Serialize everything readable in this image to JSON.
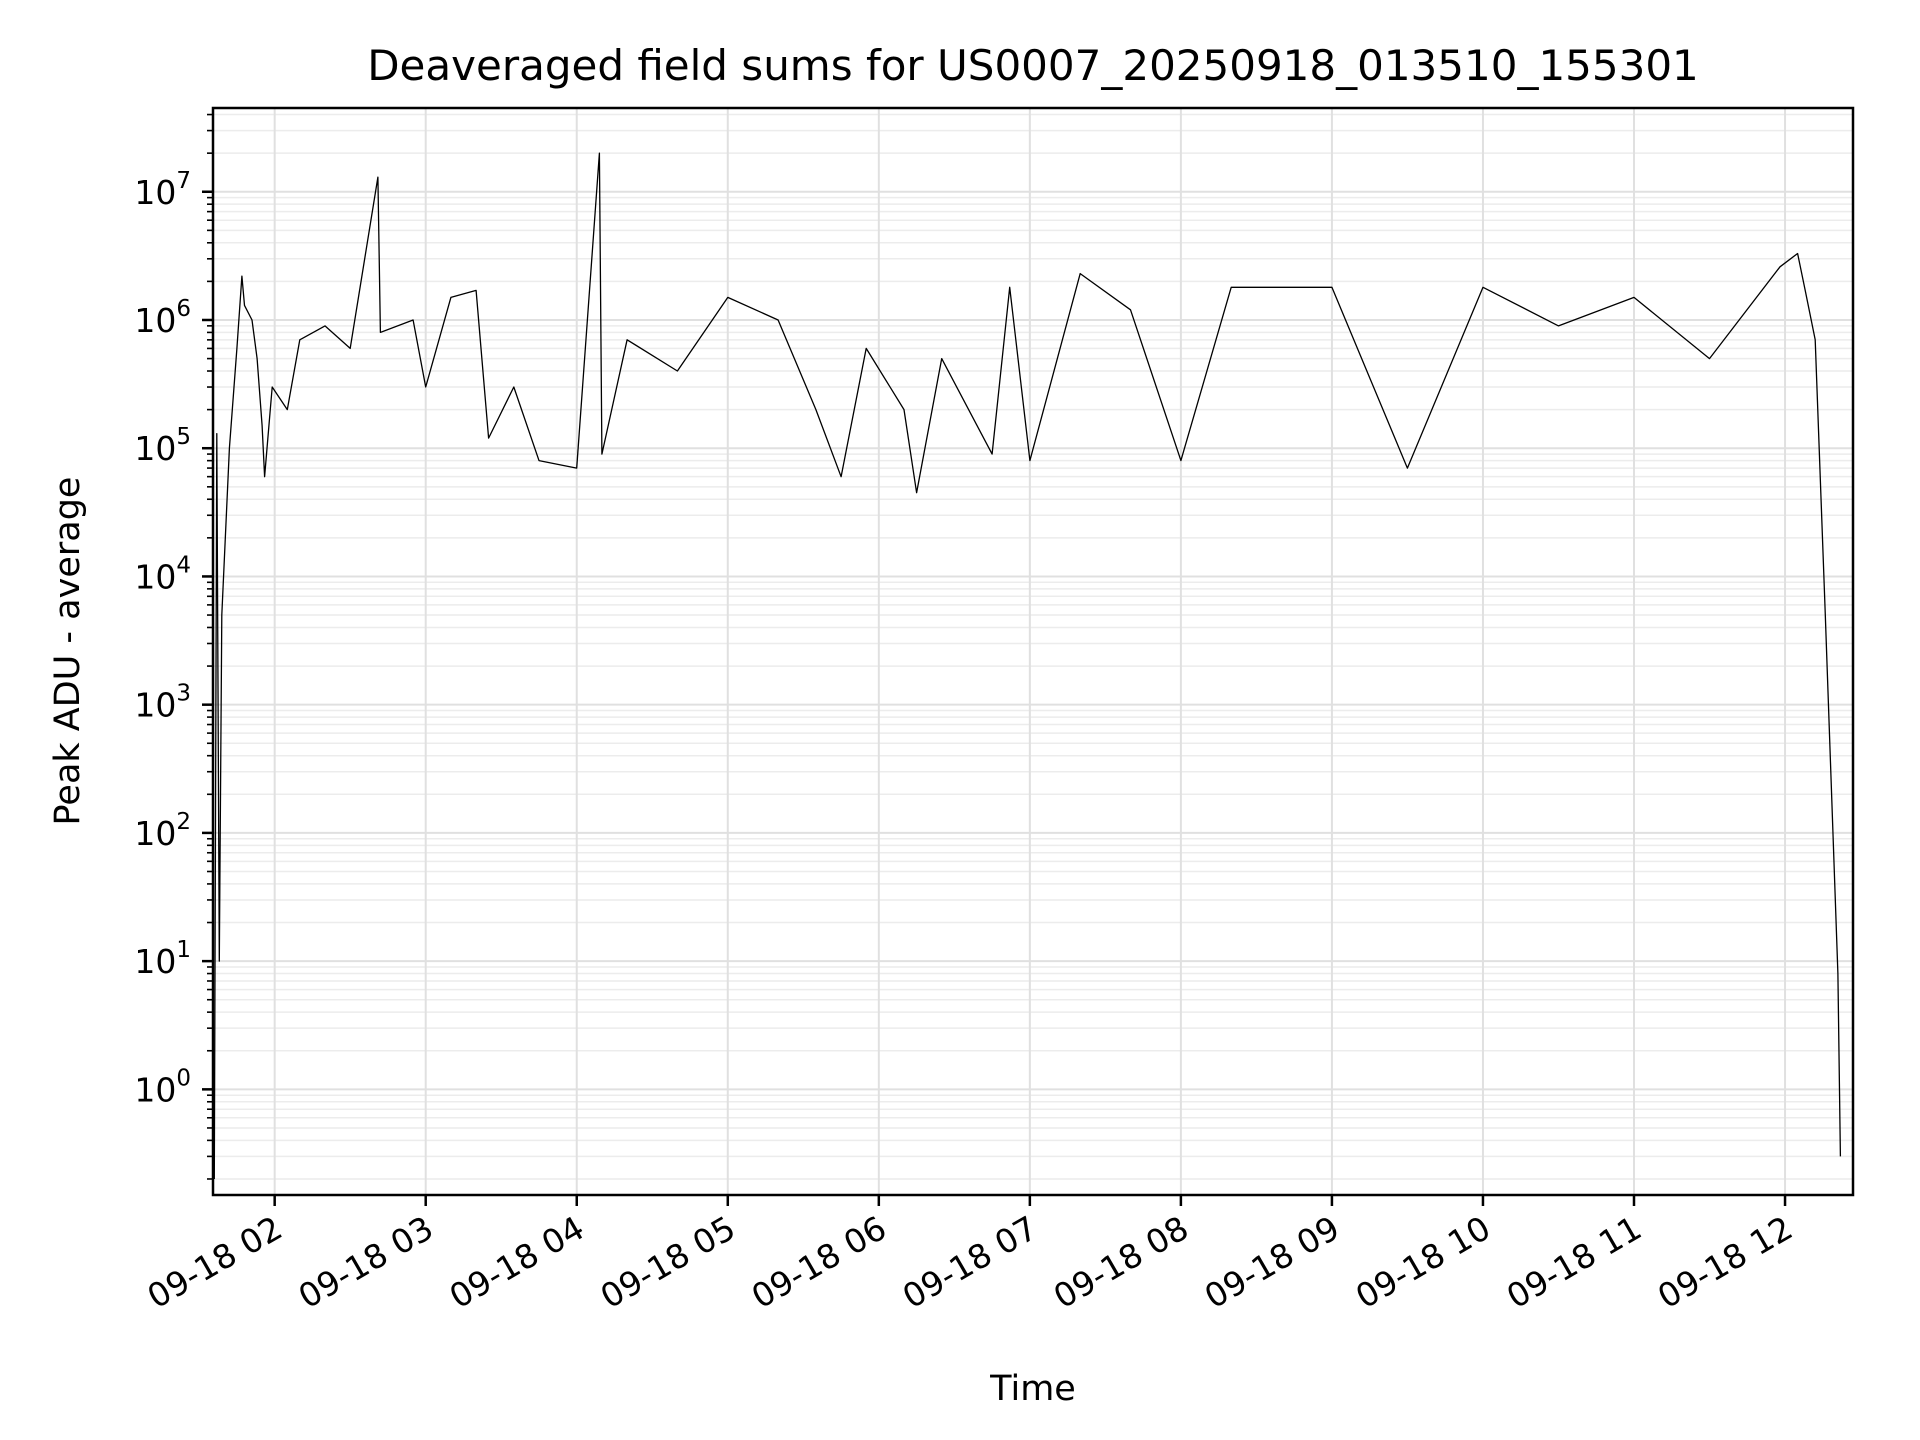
{
  "chart_data": {
    "type": "line",
    "title": "Deaveraged field sums for US0007_20250918_013510_155301",
    "xlabel": "Time",
    "ylabel": "Peak ADU - average",
    "yscale": "log",
    "grid": true,
    "ylim": [
      0.15,
      45000000
    ],
    "xlim": [
      "2025-09-18T01:35:30",
      "2025-09-18T12:27:00"
    ],
    "x_ticks": [
      {
        "t": "2025-09-18T02:00:00",
        "label": "09-18 02"
      },
      {
        "t": "2025-09-18T03:00:00",
        "label": "09-18 03"
      },
      {
        "t": "2025-09-18T04:00:00",
        "label": "09-18 04"
      },
      {
        "t": "2025-09-18T05:00:00",
        "label": "09-18 05"
      },
      {
        "t": "2025-09-18T06:00:00",
        "label": "09-18 06"
      },
      {
        "t": "2025-09-18T07:00:00",
        "label": "09-18 07"
      },
      {
        "t": "2025-09-18T08:00:00",
        "label": "09-18 08"
      },
      {
        "t": "2025-09-18T09:00:00",
        "label": "09-18 09"
      },
      {
        "t": "2025-09-18T10:00:00",
        "label": "09-18 10"
      },
      {
        "t": "2025-09-18T11:00:00",
        "label": "09-18 11"
      },
      {
        "t": "2025-09-18T12:00:00",
        "label": "09-18 12"
      }
    ],
    "y_ticks": [
      {
        "value": 1,
        "base": "10",
        "exp": "0"
      },
      {
        "value": 10,
        "base": "10",
        "exp": "1"
      },
      {
        "value": 100,
        "base": "10",
        "exp": "2"
      },
      {
        "value": 1000,
        "base": "10",
        "exp": "3"
      },
      {
        "value": 10000,
        "base": "10",
        "exp": "4"
      },
      {
        "value": 100000,
        "base": "10",
        "exp": "5"
      },
      {
        "value": 1000000,
        "base": "10",
        "exp": "6"
      },
      {
        "value": 10000000,
        "base": "10",
        "exp": "7"
      }
    ],
    "series": [
      {
        "color": "#000000",
        "points": [
          [
            "2025-09-18T01:36:00",
            0.2
          ],
          [
            "2025-09-18T01:37:00",
            130000
          ],
          [
            "2025-09-18T01:38:00",
            10
          ],
          [
            "2025-09-18T01:39:00",
            5000
          ],
          [
            "2025-09-18T01:42:00",
            100000
          ],
          [
            "2025-09-18T01:45:00",
            600000
          ],
          [
            "2025-09-18T01:47:00",
            2200000
          ],
          [
            "2025-09-18T01:48:00",
            1300000
          ],
          [
            "2025-09-18T01:51:00",
            1000000
          ],
          [
            "2025-09-18T01:53:00",
            500000
          ],
          [
            "2025-09-18T01:55:00",
            150000
          ],
          [
            "2025-09-18T01:56:00",
            60000
          ],
          [
            "2025-09-18T01:59:00",
            300000
          ],
          [
            "2025-09-18T02:05:00",
            200000
          ],
          [
            "2025-09-18T02:10:00",
            700000
          ],
          [
            "2025-09-18T02:20:00",
            900000
          ],
          [
            "2025-09-18T02:30:00",
            600000
          ],
          [
            "2025-09-18T02:41:00",
            13000000
          ],
          [
            "2025-09-18T02:42:00",
            800000
          ],
          [
            "2025-09-18T02:55:00",
            1000000
          ],
          [
            "2025-09-18T03:00:00",
            300000
          ],
          [
            "2025-09-18T03:10:00",
            1500000
          ],
          [
            "2025-09-18T03:20:00",
            1700000
          ],
          [
            "2025-09-18T03:25:00",
            120000
          ],
          [
            "2025-09-18T03:35:00",
            300000
          ],
          [
            "2025-09-18T03:45:00",
            80000
          ],
          [
            "2025-09-18T04:00:00",
            70000
          ],
          [
            "2025-09-18T04:09:00",
            20000000
          ],
          [
            "2025-09-18T04:10:00",
            90000
          ],
          [
            "2025-09-18T04:20:00",
            700000
          ],
          [
            "2025-09-18T04:40:00",
            400000
          ],
          [
            "2025-09-18T05:00:00",
            1500000
          ],
          [
            "2025-09-18T05:20:00",
            1000000
          ],
          [
            "2025-09-18T05:35:00",
            200000
          ],
          [
            "2025-09-18T05:45:00",
            60000
          ],
          [
            "2025-09-18T05:55:00",
            600000
          ],
          [
            "2025-09-18T06:10:00",
            200000
          ],
          [
            "2025-09-18T06:15:00",
            45000
          ],
          [
            "2025-09-18T06:25:00",
            500000
          ],
          [
            "2025-09-18T06:45:00",
            90000
          ],
          [
            "2025-09-18T06:52:00",
            1800000
          ],
          [
            "2025-09-18T07:00:00",
            80000
          ],
          [
            "2025-09-18T07:20:00",
            2300000
          ],
          [
            "2025-09-18T07:40:00",
            1200000
          ],
          [
            "2025-09-18T08:00:00",
            80000
          ],
          [
            "2025-09-18T08:20:00",
            1800000
          ],
          [
            "2025-09-18T09:00:00",
            1800000
          ],
          [
            "2025-09-18T09:30:00",
            70000
          ],
          [
            "2025-09-18T10:00:00",
            1800000
          ],
          [
            "2025-09-18T10:30:00",
            900000
          ],
          [
            "2025-09-18T11:00:00",
            1500000
          ],
          [
            "2025-09-18T11:30:00",
            500000
          ],
          [
            "2025-09-18T11:58:00",
            2600000
          ],
          [
            "2025-09-18T12:05:00",
            3300000
          ],
          [
            "2025-09-18T12:08:00",
            1700000
          ],
          [
            "2025-09-18T12:12:00",
            700000
          ],
          [
            "2025-09-18T12:16:00",
            5000
          ],
          [
            "2025-09-18T12:21:00",
            8
          ],
          [
            "2025-09-18T12:22:00",
            0.3
          ]
        ]
      }
    ]
  }
}
